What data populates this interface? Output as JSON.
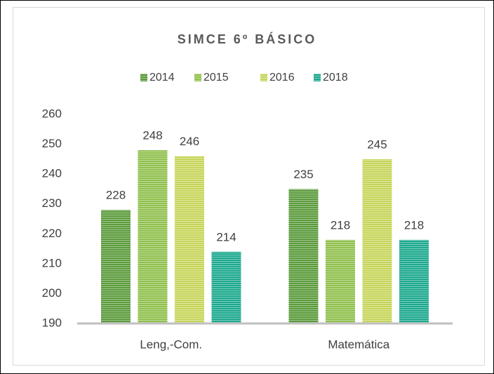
{
  "chart_data": {
    "type": "bar",
    "title": "SIMCE 6º BÁSICO",
    "categories": [
      "Leng,-Com.",
      "Matemática"
    ],
    "series": [
      {
        "name": "2014",
        "color": "#5a9a3a",
        "values": [
          228,
          235
        ]
      },
      {
        "name": "2015",
        "color": "#8fc04c",
        "values": [
          248,
          218
        ]
      },
      {
        "name": "2016",
        "color": "#c6d55a",
        "values": [
          246,
          245
        ]
      },
      {
        "name": "2018",
        "color": "#1aa88c",
        "values": [
          214,
          218
        ]
      }
    ],
    "ylim": [
      190,
      260
    ],
    "yticks": [
      190,
      200,
      210,
      220,
      230,
      240,
      250,
      260
    ],
    "grid": false,
    "legend": "top"
  }
}
